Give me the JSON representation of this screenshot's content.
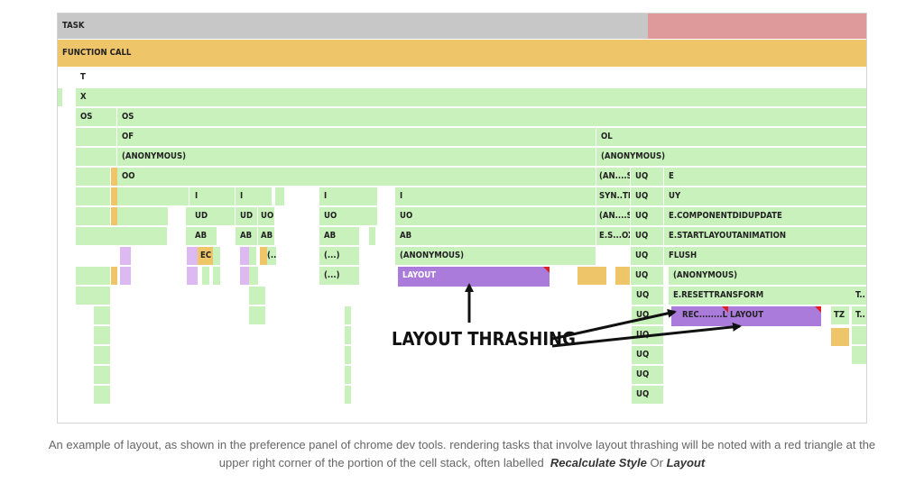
{
  "flame": {
    "task_label": "TASK",
    "function_call_label": "FUNCTION CALL",
    "labels": {
      "t": "T",
      "x": "X",
      "os": "OS",
      "of": "OF",
      "ol": "OL",
      "anonymous": "(ANONYMOUS)",
      "oo": "OO",
      "an_s": "(AN....S)",
      "uq": "UQ",
      "e": "E",
      "i": "I",
      "syn_te": "SYN..TE",
      "uy": "UY",
      "ud": "UD",
      "uo": "UO",
      "e_componentdidupdate": "E.COMPONENTDIDUPDATE",
      "ab": "AB",
      "e_s_ox": "E.S...OX",
      "e_startlayoutanimation": "E.STARTLAYOUTANIMATION",
      "ec": "EC",
      "ellipsis": "(...)",
      "flush": "FLUSH",
      "layout": "LAYOUT",
      "e_resettransform": "E.RESETTRANSFORM",
      "t_trunc": "T..",
      "rec_le": "REC........LE",
      "tz": "TZ"
    },
    "colors": {
      "task": "#c7c7c7",
      "task_red": "#de9a9a",
      "function_call": "#efc569",
      "script": "#c9f1bc",
      "orange": "#efc569",
      "layout": "#ab7bdc",
      "light_purple": "#dcb9f0",
      "warning_triangle": "#e02020"
    }
  },
  "annotation": {
    "label": "LAYOUT THRASHING"
  },
  "caption": {
    "text": "An example of layout, as shown in the preference panel of chrome dev tools. rendering tasks that involve layout thrashing will be noted with a red triangle at the upper right corner of the portion of the cell stack, often labelled",
    "term1": "Recalculate Style",
    "connector": "Or",
    "term2": "Layout"
  }
}
